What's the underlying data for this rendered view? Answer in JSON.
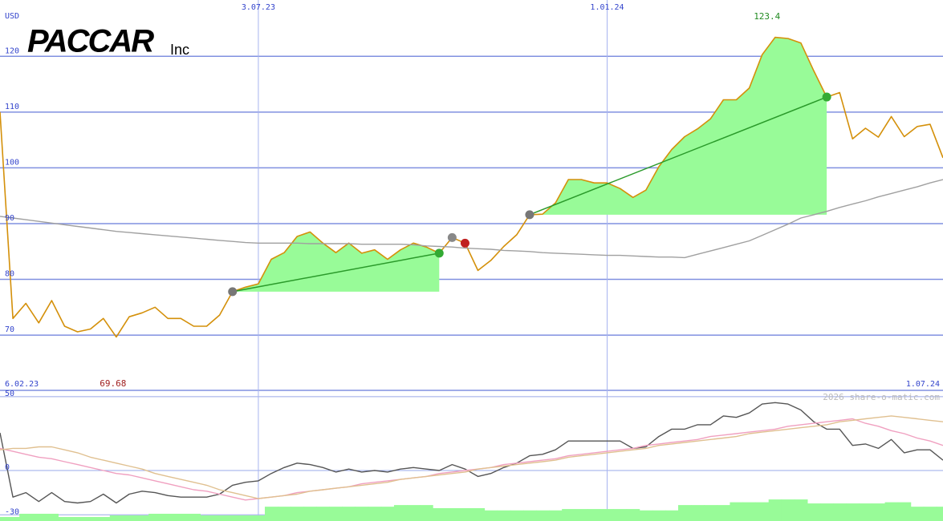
{
  "chart_data": [
    {
      "type": "line",
      "title": "PACCAR",
      "subtitle": "Inc",
      "ylabel": "USD",
      "categories": [
        "6.02.23",
        null,
        null,
        null,
        null,
        null,
        null,
        null,
        null,
        null,
        null,
        null,
        null,
        null,
        null,
        null,
        null,
        null,
        null,
        null,
        "3.07.23",
        null,
        null,
        null,
        null,
        null,
        null,
        null,
        null,
        null,
        null,
        null,
        null,
        null,
        null,
        null,
        null,
        null,
        null,
        null,
        null,
        null,
        null,
        null,
        null,
        null,
        null,
        "1.01.24",
        null,
        null,
        null,
        null,
        null,
        null,
        null,
        null,
        null,
        null,
        null,
        null,
        null,
        null,
        null,
        null,
        null,
        null,
        null,
        null,
        null,
        null,
        null,
        null,
        null,
        "1.07.24"
      ],
      "series": [
        {
          "color": "#d4900a",
          "values": [
            110,
            73.0,
            75.7,
            72.2,
            76.2,
            71.6,
            70.6,
            71.1,
            73.0,
            69.68,
            73.3,
            74.0,
            75.0,
            73.0,
            73.0,
            71.6,
            71.6,
            73.6,
            77.8,
            78.6,
            79.2,
            83.6,
            84.8,
            87.7,
            88.5,
            86.5,
            84.8,
            86.5,
            84.7,
            85.3,
            83.6,
            85.3,
            86.5,
            85.8,
            84.7,
            87.5,
            86.5,
            81.6,
            83.4,
            85.9,
            88.0,
            91.6,
            91.7,
            93.7,
            97.9,
            97.9,
            97.3,
            97.3,
            96.3,
            94.7,
            96.0,
            100.2,
            103.3,
            105.6,
            107.0,
            108.8,
            112.2,
            112.2,
            114.3,
            120.3,
            123.4,
            123.2,
            122.4,
            117.4,
            112.7,
            113.5,
            105.2,
            107.1,
            105.5,
            109.2,
            105.6,
            107.4,
            107.8,
            101.8
          ]
        },
        {
          "color": "#a0a0a0",
          "values": [
            91.3,
            91.0,
            90.7,
            90.4,
            90.1,
            89.8,
            89.5,
            89.2,
            88.9,
            88.6,
            88.4,
            88.2,
            88.0,
            87.8,
            87.6,
            87.4,
            87.2,
            87.0,
            86.8,
            86.6,
            86.5,
            86.5,
            86.5,
            86.5,
            86.4,
            86.4,
            86.4,
            86.4,
            86.3,
            86.3,
            86.3,
            86.3,
            86.2,
            86.0,
            85.9,
            85.8,
            85.6,
            85.5,
            85.4,
            85.2,
            85.1,
            85.0,
            84.8,
            84.7,
            84.6,
            84.5,
            84.4,
            84.3,
            84.3,
            84.2,
            84.1,
            84.0,
            84.0,
            83.9,
            84.5,
            85.1,
            85.7,
            86.3,
            86.9,
            87.9,
            88.9,
            89.9,
            91.0,
            91.6,
            92.2,
            92.9,
            93.5,
            94.1,
            94.8,
            95.4,
            96.0,
            96.6,
            97.3,
            97.9
          ]
        }
      ],
      "ylim": [
        60.1,
        130.1
      ],
      "yticks": [
        70,
        80,
        90,
        100,
        110,
        120
      ],
      "grid": true,
      "fill_color": "#98fb98",
      "trend_color": "#2a9a2a",
      "annotations": {
        "max": "123.4",
        "min": "69.68"
      }
    },
    {
      "type": "line",
      "source": "2026 share-o-matic.com",
      "series": [
        {
          "color": "#555555",
          "values": [
            25.5,
            -18,
            -15,
            -21,
            -15,
            -21,
            -22,
            -21,
            -16,
            -22,
            -16,
            -14,
            -15,
            -17,
            -18,
            -18,
            -18,
            -16,
            -10,
            -8,
            -7,
            -2,
            2,
            5,
            4,
            2,
            -1,
            1,
            -1,
            0,
            -1,
            1,
            2,
            1,
            0,
            4,
            1,
            -4,
            -2,
            2,
            5,
            10,
            11,
            14,
            20,
            20,
            20,
            20,
            20,
            15,
            16,
            23,
            28,
            28,
            31,
            31,
            37,
            36,
            39,
            45,
            46,
            45,
            41,
            33,
            28,
            28,
            17,
            18,
            15,
            21,
            12,
            14,
            14,
            7
          ]
        },
        {
          "color": "#f0a0c0",
          "values": [
            15,
            13,
            11,
            9,
            8,
            6,
            4,
            2,
            0,
            -2,
            -3,
            -5,
            -7,
            -9,
            -11,
            -13,
            -14,
            -16,
            -18,
            -20,
            -19,
            -18,
            -17,
            -15,
            -14,
            -13,
            -12,
            -11,
            -9,
            -8,
            -7,
            -6,
            -5,
            -4,
            -2,
            -1,
            0,
            1,
            2,
            4,
            5,
            6,
            7,
            8,
            10,
            11,
            12,
            13,
            14,
            15,
            17,
            18,
            19,
            20,
            21,
            23,
            24,
            25,
            26,
            27,
            28,
            30,
            31,
            32,
            33,
            34,
            35,
            32,
            30,
            27,
            25,
            22,
            20,
            17
          ]
        },
        {
          "color": "#e0c090",
          "values": [
            14,
            15,
            15,
            16,
            16,
            14,
            12,
            9,
            7,
            5,
            3,
            1,
            -2,
            -4,
            -6,
            -8,
            -10,
            -13,
            -15,
            -17,
            -19,
            -18,
            -17,
            -16,
            -14,
            -13,
            -12,
            -11,
            -10,
            -9,
            -8,
            -6,
            -5,
            -4,
            -3,
            -2,
            -1,
            1,
            2,
            3,
            4,
            5,
            6,
            7,
            9,
            10,
            11,
            12,
            13,
            14,
            15,
            17,
            18,
            19,
            20,
            21,
            22,
            23,
            25,
            26,
            27,
            28,
            29,
            30,
            31,
            33,
            34,
            35,
            36,
            37,
            36,
            35,
            34,
            33
          ]
        },
        {
          "type": "bar",
          "color": "#98fb98",
          "values": [
            -31.5,
            -31.5,
            -29.3,
            -29.3,
            -29.3,
            -31.5,
            -31.5,
            -31.5,
            -31.5,
            -30.4,
            -30.4,
            -30.4,
            -29.3,
            -29.3,
            -29.3,
            -29.3,
            -30.4,
            -30.4,
            -30.4,
            -30.4,
            -30.4,
            -24.5,
            -24.5,
            -24.5,
            -24.5,
            -24.5,
            -24.5,
            -24.5,
            -24.5,
            -24.5,
            -24.5,
            -23.4,
            -23.4,
            -23.4,
            -25.5,
            -25.5,
            -25.5,
            -25.5,
            -27,
            -27,
            -27,
            -27,
            -27,
            -27,
            -26.1,
            -26.1,
            -26.1,
            -26.1,
            -26.1,
            -26.1,
            -27,
            -27,
            -27,
            -23.4,
            -23.4,
            -23.4,
            -23.4,
            -21.5,
            -21.5,
            -21.5,
            -19.6,
            -19.6,
            -19.6,
            -22.3,
            -22.3,
            -22.3,
            -22.3,
            -22.3,
            -22.3,
            -21.5,
            -21.5,
            -24.5,
            -24.5,
            -24.5
          ]
        }
      ],
      "ylim": [
        -34.2,
        54.3
      ],
      "yticks": [
        50,
        0,
        -30
      ],
      "grid": true
    }
  ]
}
